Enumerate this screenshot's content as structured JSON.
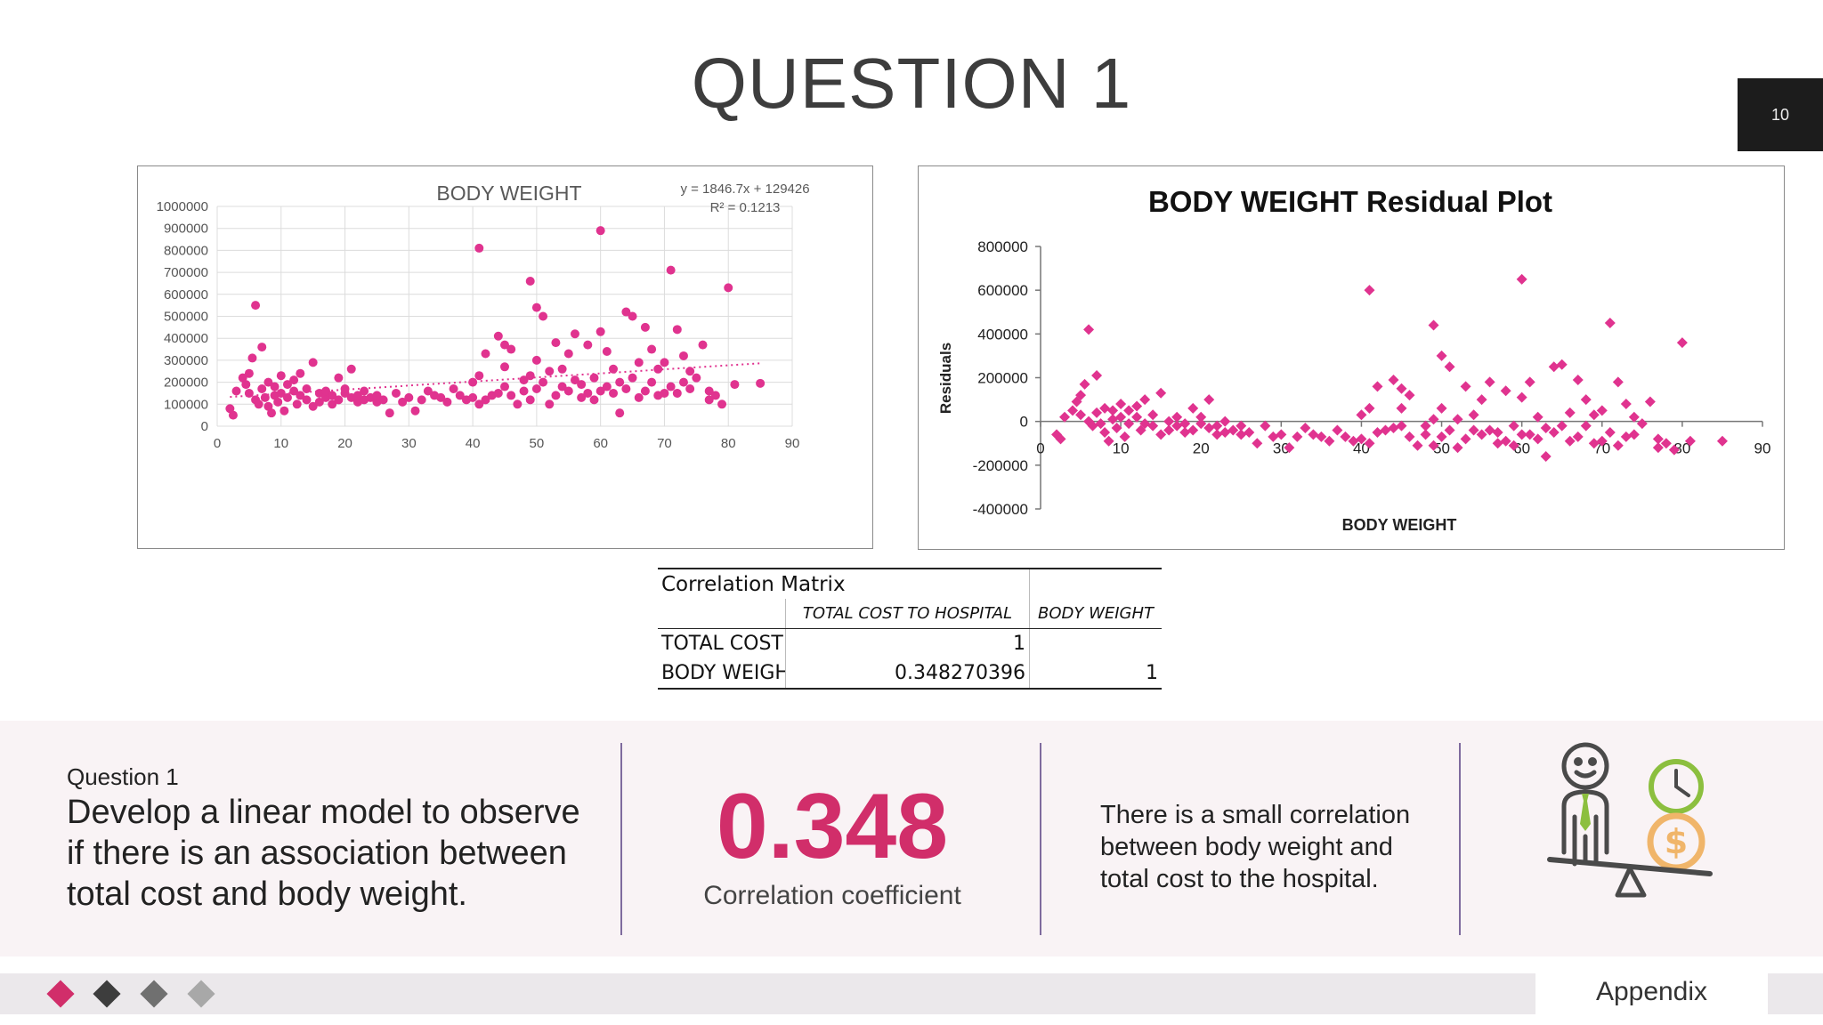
{
  "title": "QUESTION 1",
  "page_number": "10",
  "colors": {
    "accent": "#d12e6a",
    "point": "#e0338f",
    "divider": "#7f6b9e",
    "header_box": "#1c1c1c"
  },
  "chart_data": [
    {
      "type": "scatter",
      "title": "BODY WEIGHT",
      "xlabel": "",
      "ylabel": "",
      "xlim": [
        0,
        90
      ],
      "ylim": [
        0,
        1000000
      ],
      "xticks": [
        0,
        10,
        20,
        30,
        40,
        50,
        60,
        70,
        80,
        90
      ],
      "yticks": [
        0,
        100000,
        200000,
        300000,
        400000,
        500000,
        600000,
        700000,
        800000,
        900000,
        1000000
      ],
      "grid": true,
      "trendline": {
        "type": "linear",
        "slope": 1846.7,
        "intercept": 129426,
        "x_range": [
          2,
          85
        ]
      },
      "annotation": {
        "equation": "y = 1846.7x + 129426",
        "r_squared": "R² = 0.1213"
      },
      "points": [
        [
          2,
          80000
        ],
        [
          2.5,
          50000
        ],
        [
          3,
          160000
        ],
        [
          4,
          220000
        ],
        [
          4.5,
          190000
        ],
        [
          5,
          150000
        ],
        [
          5,
          240000
        ],
        [
          5.5,
          310000
        ],
        [
          6,
          550000
        ],
        [
          6,
          120000
        ],
        [
          6.5,
          100000
        ],
        [
          7,
          360000
        ],
        [
          7,
          170000
        ],
        [
          7.5,
          130000
        ],
        [
          8,
          200000
        ],
        [
          8,
          90000
        ],
        [
          8.5,
          60000
        ],
        [
          9,
          140000
        ],
        [
          9,
          180000
        ],
        [
          9.5,
          110000
        ],
        [
          10,
          230000
        ],
        [
          10,
          150000
        ],
        [
          10.5,
          70000
        ],
        [
          11,
          190000
        ],
        [
          11,
          130000
        ],
        [
          12,
          210000
        ],
        [
          12,
          160000
        ],
        [
          12.5,
          100000
        ],
        [
          13,
          240000
        ],
        [
          13,
          140000
        ],
        [
          14,
          170000
        ],
        [
          14,
          120000
        ],
        [
          15,
          290000
        ],
        [
          15,
          90000
        ],
        [
          16,
          150000
        ],
        [
          16,
          110000
        ],
        [
          17,
          130000
        ],
        [
          17,
          160000
        ],
        [
          18,
          100000
        ],
        [
          18,
          140000
        ],
        [
          19,
          220000
        ],
        [
          19,
          120000
        ],
        [
          20,
          150000
        ],
        [
          20,
          170000
        ],
        [
          21,
          130000
        ],
        [
          21,
          260000
        ],
        [
          22,
          110000
        ],
        [
          22,
          140000
        ],
        [
          23,
          160000
        ],
        [
          23,
          120000
        ],
        [
          24,
          130000
        ],
        [
          25,
          110000
        ],
        [
          25,
          140000
        ],
        [
          26,
          120000
        ],
        [
          27,
          60000
        ],
        [
          28,
          150000
        ],
        [
          29,
          110000
        ],
        [
          30,
          130000
        ],
        [
          31,
          70000
        ],
        [
          32,
          120000
        ],
        [
          33,
          160000
        ],
        [
          34,
          140000
        ],
        [
          35,
          130000
        ],
        [
          36,
          110000
        ],
        [
          37,
          170000
        ],
        [
          38,
          140000
        ],
        [
          39,
          120000
        ],
        [
          40,
          200000
        ],
        [
          40,
          130000
        ],
        [
          41,
          230000
        ],
        [
          41,
          100000
        ],
        [
          41,
          810000
        ],
        [
          42,
          330000
        ],
        [
          42,
          120000
        ],
        [
          43,
          140000
        ],
        [
          44,
          150000
        ],
        [
          44,
          410000
        ],
        [
          45,
          370000
        ],
        [
          45,
          270000
        ],
        [
          45,
          180000
        ],
        [
          46,
          350000
        ],
        [
          46,
          140000
        ],
        [
          47,
          100000
        ],
        [
          48,
          210000
        ],
        [
          48,
          160000
        ],
        [
          49,
          660000
        ],
        [
          49,
          230000
        ],
        [
          49,
          120000
        ],
        [
          50,
          540000
        ],
        [
          50,
          300000
        ],
        [
          50,
          170000
        ],
        [
          51,
          500000
        ],
        [
          51,
          200000
        ],
        [
          52,
          250000
        ],
        [
          52,
          100000
        ],
        [
          53,
          380000
        ],
        [
          53,
          140000
        ],
        [
          54,
          260000
        ],
        [
          54,
          180000
        ],
        [
          55,
          160000
        ],
        [
          55,
          330000
        ],
        [
          56,
          420000
        ],
        [
          56,
          210000
        ],
        [
          57,
          190000
        ],
        [
          57,
          130000
        ],
        [
          58,
          370000
        ],
        [
          58,
          150000
        ],
        [
          59,
          220000
        ],
        [
          59,
          120000
        ],
        [
          60,
          890000
        ],
        [
          60,
          160000
        ],
        [
          60,
          430000
        ],
        [
          61,
          340000
        ],
        [
          61,
          180000
        ],
        [
          62,
          150000
        ],
        [
          62,
          260000
        ],
        [
          63,
          60000
        ],
        [
          63,
          200000
        ],
        [
          64,
          520000
        ],
        [
          64,
          170000
        ],
        [
          65,
          500000
        ],
        [
          65,
          220000
        ],
        [
          66,
          130000
        ],
        [
          66,
          290000
        ],
        [
          67,
          160000
        ],
        [
          67,
          450000
        ],
        [
          68,
          200000
        ],
        [
          68,
          350000
        ],
        [
          69,
          140000
        ],
        [
          69,
          260000
        ],
        [
          70,
          150000
        ],
        [
          70,
          290000
        ],
        [
          71,
          710000
        ],
        [
          71,
          180000
        ],
        [
          72,
          440000
        ],
        [
          72,
          150000
        ],
        [
          73,
          320000
        ],
        [
          73,
          200000
        ],
        [
          74,
          250000
        ],
        [
          74,
          170000
        ],
        [
          75,
          220000
        ],
        [
          76,
          370000
        ],
        [
          77,
          160000
        ],
        [
          77,
          120000
        ],
        [
          78,
          140000
        ],
        [
          79,
          100000
        ],
        [
          80,
          630000
        ],
        [
          81,
          190000
        ],
        [
          85,
          195000
        ]
      ]
    },
    {
      "type": "scatter",
      "title": "BODY WEIGHT  Residual Plot",
      "xlabel": "BODY WEIGHT",
      "ylabel": "Residuals",
      "xlim": [
        0,
        90
      ],
      "ylim": [
        -400000,
        800000
      ],
      "xticks": [
        0,
        10,
        20,
        30,
        40,
        50,
        60,
        70,
        80,
        90
      ],
      "yticks": [
        -400000,
        -200000,
        0,
        200000,
        400000,
        600000,
        800000
      ],
      "grid": false,
      "marker": "diamond",
      "points": [
        [
          2,
          -60000
        ],
        [
          2.5,
          -80000
        ],
        [
          3,
          20000
        ],
        [
          4,
          50000
        ],
        [
          4.5,
          90000
        ],
        [
          5,
          30000
        ],
        [
          5,
          120000
        ],
        [
          5.5,
          170000
        ],
        [
          6,
          420000
        ],
        [
          6,
          0
        ],
        [
          6.5,
          -20000
        ],
        [
          7,
          210000
        ],
        [
          7,
          40000
        ],
        [
          7.5,
          -10000
        ],
        [
          8,
          60000
        ],
        [
          8,
          -50000
        ],
        [
          8.5,
          -90000
        ],
        [
          9,
          10000
        ],
        [
          9,
          50000
        ],
        [
          9.5,
          -30000
        ],
        [
          10,
          80000
        ],
        [
          10,
          20000
        ],
        [
          10.5,
          -70000
        ],
        [
          11,
          50000
        ],
        [
          11,
          -10000
        ],
        [
          12,
          70000
        ],
        [
          12,
          20000
        ],
        [
          12.5,
          -40000
        ],
        [
          13,
          100000
        ],
        [
          13,
          -10000
        ],
        [
          14,
          30000
        ],
        [
          14,
          -20000
        ],
        [
          15,
          130000
        ],
        [
          15,
          -60000
        ],
        [
          16,
          0
        ],
        [
          16,
          -40000
        ],
        [
          17,
          -20000
        ],
        [
          17,
          20000
        ],
        [
          18,
          -50000
        ],
        [
          18,
          -10000
        ],
        [
          19,
          60000
        ],
        [
          19,
          -40000
        ],
        [
          20,
          -10000
        ],
        [
          20,
          20000
        ],
        [
          21,
          -30000
        ],
        [
          21,
          100000
        ],
        [
          22,
          -60000
        ],
        [
          22,
          -20000
        ],
        [
          23,
          0
        ],
        [
          23,
          -50000
        ],
        [
          24,
          -40000
        ],
        [
          25,
          -60000
        ],
        [
          25,
          -20000
        ],
        [
          26,
          -50000
        ],
        [
          27,
          -100000
        ],
        [
          28,
          -20000
        ],
        [
          29,
          -70000
        ],
        [
          30,
          -60000
        ],
        [
          31,
          -120000
        ],
        [
          32,
          -70000
        ],
        [
          33,
          -30000
        ],
        [
          34,
          -60000
        ],
        [
          35,
          -70000
        ],
        [
          36,
          -90000
        ],
        [
          37,
          -40000
        ],
        [
          38,
          -70000
        ],
        [
          39,
          -90000
        ],
        [
          40,
          30000
        ],
        [
          40,
          -80000
        ],
        [
          41,
          600000
        ],
        [
          41,
          60000
        ],
        [
          41,
          -100000
        ],
        [
          42,
          160000
        ],
        [
          42,
          -50000
        ],
        [
          43,
          -40000
        ],
        [
          44,
          -30000
        ],
        [
          44,
          190000
        ],
        [
          45,
          150000
        ],
        [
          45,
          60000
        ],
        [
          45,
          -20000
        ],
        [
          46,
          120000
        ],
        [
          46,
          -70000
        ],
        [
          47,
          -110000
        ],
        [
          48,
          -20000
        ],
        [
          48,
          -60000
        ],
        [
          49,
          440000
        ],
        [
          49,
          10000
        ],
        [
          49,
          -110000
        ],
        [
          50,
          300000
        ],
        [
          50,
          60000
        ],
        [
          50,
          -70000
        ],
        [
          51,
          250000
        ],
        [
          51,
          -40000
        ],
        [
          52,
          10000
        ],
        [
          52,
          -120000
        ],
        [
          53,
          160000
        ],
        [
          53,
          -80000
        ],
        [
          54,
          30000
        ],
        [
          54,
          -40000
        ],
        [
          55,
          -60000
        ],
        [
          55,
          100000
        ],
        [
          56,
          180000
        ],
        [
          56,
          -40000
        ],
        [
          57,
          -50000
        ],
        [
          57,
          -100000
        ],
        [
          58,
          140000
        ],
        [
          58,
          -90000
        ],
        [
          59,
          -20000
        ],
        [
          59,
          -110000
        ],
        [
          60,
          650000
        ],
        [
          60,
          -60000
        ],
        [
          60,
          110000
        ],
        [
          61,
          180000
        ],
        [
          61,
          -60000
        ],
        [
          62,
          -80000
        ],
        [
          62,
          20000
        ],
        [
          63,
          -160000
        ],
        [
          63,
          -30000
        ],
        [
          64,
          250000
        ],
        [
          64,
          -50000
        ],
        [
          65,
          260000
        ],
        [
          65,
          -20000
        ],
        [
          66,
          -90000
        ],
        [
          66,
          40000
        ],
        [
          67,
          -70000
        ],
        [
          67,
          190000
        ],
        [
          68,
          -20000
        ],
        [
          68,
          100000
        ],
        [
          69,
          -100000
        ],
        [
          69,
          30000
        ],
        [
          70,
          -90000
        ],
        [
          70,
          50000
        ],
        [
          71,
          450000
        ],
        [
          71,
          -50000
        ],
        [
          72,
          180000
        ],
        [
          72,
          -110000
        ],
        [
          73,
          80000
        ],
        [
          73,
          -70000
        ],
        [
          74,
          20000
        ],
        [
          74,
          -60000
        ],
        [
          75,
          -10000
        ],
        [
          76,
          90000
        ],
        [
          77,
          -80000
        ],
        [
          77,
          -120000
        ],
        [
          78,
          -100000
        ],
        [
          79,
          -130000
        ],
        [
          80,
          360000
        ],
        [
          81,
          -90000
        ],
        [
          85,
          -90000
        ]
      ]
    },
    {
      "type": "table",
      "title": "Correlation Matrix",
      "columns": [
        "",
        "TOTAL COST TO HOSPITAL",
        "BODY WEIGHT"
      ],
      "rows": [
        [
          "TOTAL COST TO HOSPITAL",
          "1",
          ""
        ],
        [
          "BODY WEIGHT",
          "0.348270396",
          "1"
        ]
      ]
    }
  ],
  "matrix_display": {
    "title": "Correlation Matrix",
    "col1": "TOTAL COST TO HOSPITAL",
    "col2": "BODY WEIGHT",
    "row1_label": "TOTAL COST TO HOSPITAL",
    "row1_v1": "1",
    "row2_label": "BODY WEIGHT",
    "row2_v1": "0.348270396",
    "row2_v2": "1"
  },
  "summary": {
    "question_label": "Question 1",
    "question_text": "Develop a linear model to observe if there is an association between total cost and body weight.",
    "coefficient": "0.348",
    "coefficient_caption": "Correlation coefficient",
    "conclusion": "There is a small correlation between body weight and total cost to the hospital."
  },
  "footer": {
    "label": "Appendix",
    "diamond_colors": [
      "#d12e6a",
      "#3d3d3d",
      "#707070",
      "#a8a8a8"
    ]
  }
}
